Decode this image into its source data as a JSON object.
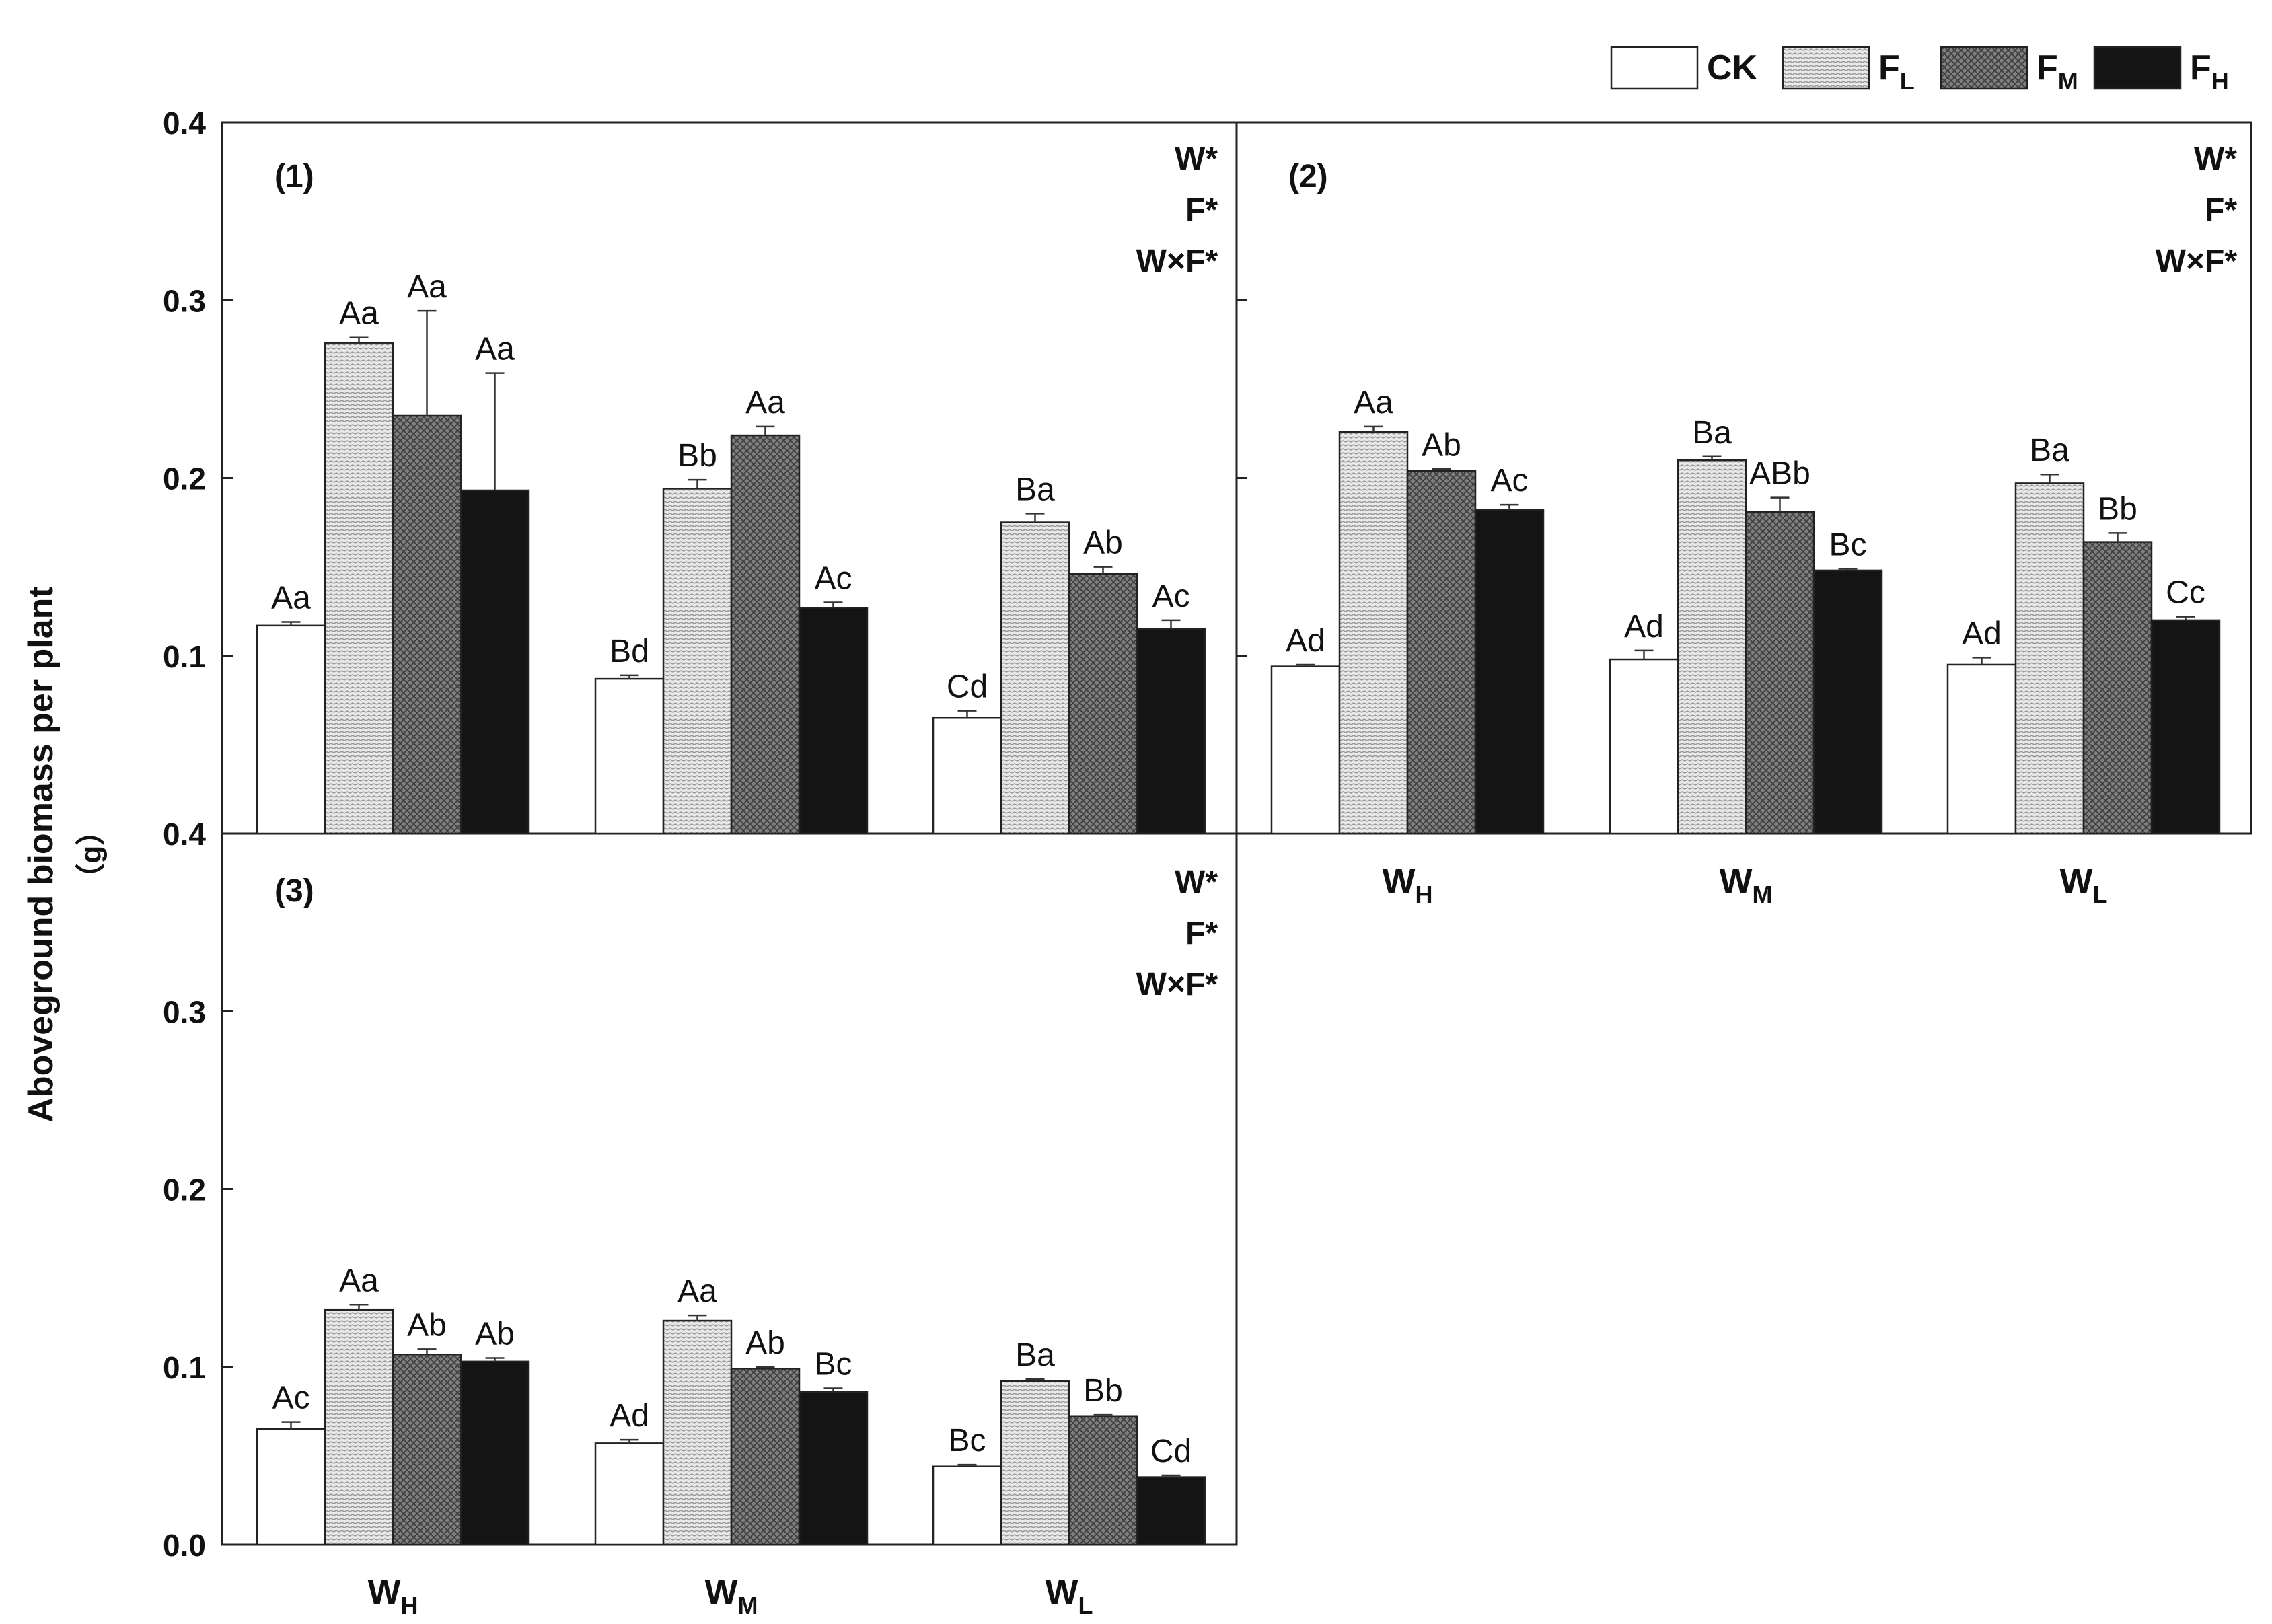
{
  "y_axis_label_line1": "Aboveground biomass per plant",
  "y_axis_label_line2": "（g）",
  "legend": [
    {
      "key": "CK",
      "label": "CK",
      "sub": ""
    },
    {
      "key": "FL",
      "label": "F",
      "sub": "L"
    },
    {
      "key": "FM",
      "label": "F",
      "sub": "M"
    },
    {
      "key": "FH",
      "label": "F",
      "sub": "H"
    }
  ],
  "x_categories": [
    {
      "label": "W",
      "sub": "H"
    },
    {
      "label": "W",
      "sub": "M"
    },
    {
      "label": "W",
      "sub": "L"
    }
  ],
  "significance_labels": [
    "W*",
    "F*",
    "W×F*"
  ],
  "chart_data": [
    {
      "type": "bar",
      "panel": "(1)",
      "categories": [
        "WH",
        "WM",
        "WL"
      ],
      "ylim": [
        0.0,
        0.4
      ],
      "yticks": [
        "0.1",
        "0.2",
        "0.3",
        "0.4"
      ],
      "series": [
        {
          "name": "CK",
          "values": [
            0.117,
            0.087,
            0.065
          ],
          "errors": [
            0.002,
            0.002,
            0.004
          ],
          "letters": [
            "Aa",
            "Bd",
            "Cd"
          ]
        },
        {
          "name": "FL",
          "values": [
            0.276,
            0.194,
            0.175
          ],
          "errors": [
            0.003,
            0.005,
            0.005
          ],
          "letters": [
            "Aa",
            "Bb",
            "Ba"
          ]
        },
        {
          "name": "FM",
          "values": [
            0.235,
            0.224,
            0.146
          ],
          "errors": [
            0.059,
            0.005,
            0.004
          ],
          "letters": [
            "Aa",
            "Aa",
            "Ab"
          ]
        },
        {
          "name": "FH",
          "values": [
            0.193,
            0.127,
            0.115
          ],
          "errors": [
            0.066,
            0.003,
            0.005
          ],
          "letters": [
            "Aa",
            "Ac",
            "Ac"
          ]
        }
      ]
    },
    {
      "type": "bar",
      "panel": "(2)",
      "categories": [
        "WH",
        "WM",
        "WL"
      ],
      "ylim": [
        0.0,
        0.4
      ],
      "yticks": [],
      "series": [
        {
          "name": "CK",
          "values": [
            0.094,
            0.098,
            0.095
          ],
          "errors": [
            0.001,
            0.005,
            0.004
          ],
          "letters": [
            "Ad",
            "Ad",
            "Ad"
          ]
        },
        {
          "name": "FL",
          "values": [
            0.226,
            0.21,
            0.197
          ],
          "errors": [
            0.003,
            0.002,
            0.005
          ],
          "letters": [
            "Aa",
            "Ba",
            "Ba"
          ]
        },
        {
          "name": "FM",
          "values": [
            0.204,
            0.181,
            0.164
          ],
          "errors": [
            0.001,
            0.008,
            0.005
          ],
          "letters": [
            "Ab",
            "ABb",
            "Bb"
          ]
        },
        {
          "name": "FH",
          "values": [
            0.182,
            0.148,
            0.12
          ],
          "errors": [
            0.003,
            0.001,
            0.002
          ],
          "letters": [
            "Ac",
            "Bc",
            "Cc"
          ]
        }
      ]
    },
    {
      "type": "bar",
      "panel": "(3)",
      "categories": [
        "WH",
        "WM",
        "WL"
      ],
      "ylim": [
        0.0,
        0.4
      ],
      "yticks": [
        "0.0",
        "0.1",
        "0.2",
        "0.3",
        "0.4"
      ],
      "series": [
        {
          "name": "CK",
          "values": [
            0.065,
            0.057,
            0.044
          ],
          "errors": [
            0.004,
            0.002,
            0.001
          ],
          "letters": [
            "Ac",
            "Ad",
            "Bc"
          ]
        },
        {
          "name": "FL",
          "values": [
            0.132,
            0.126,
            0.092
          ],
          "errors": [
            0.003,
            0.003,
            0.001
          ],
          "letters": [
            "Aa",
            "Aa",
            "Ba"
          ]
        },
        {
          "name": "FM",
          "values": [
            0.107,
            0.099,
            0.072
          ],
          "errors": [
            0.003,
            0.001,
            0.001
          ],
          "letters": [
            "Ab",
            "Ab",
            "Bb"
          ]
        },
        {
          "name": "FH",
          "values": [
            0.103,
            0.086,
            0.038
          ],
          "errors": [
            0.002,
            0.002,
            0.001
          ],
          "letters": [
            "Ab",
            "Bc",
            "Cd"
          ]
        }
      ]
    }
  ]
}
